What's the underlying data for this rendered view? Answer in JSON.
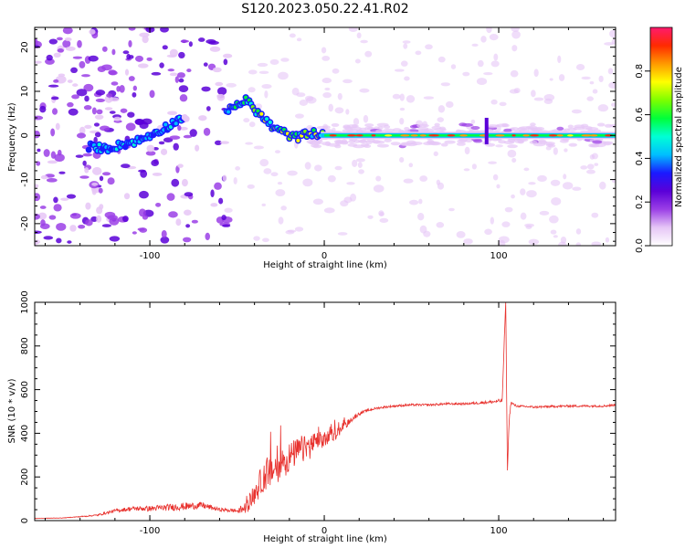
{
  "chart_data": [
    {
      "type": "heatmap",
      "title": "S120.2023.050.22.41.R02",
      "xlabel": "Height of straight line (km)",
      "ylabel": "Frequency (Hz)",
      "xlim": [
        -166,
        167
      ],
      "ylim": [
        -25,
        24.5
      ],
      "x_ticks": [
        -100,
        0,
        100
      ],
      "y_ticks": [
        -20,
        -10,
        0,
        10,
        20
      ],
      "colorbar": {
        "label": "Normalized spectral amplitude",
        "range": [
          0,
          1
        ],
        "ticks": [
          "0.0",
          "0.2",
          "0.4",
          "0.6",
          "0.8"
        ],
        "colormap": [
          "#ffffff",
          "#e6c6f6",
          "#9b3fe6",
          "#5a00d8",
          "#1a1aff",
          "#00bfff",
          "#00ffd5",
          "#00ff3a",
          "#7dff00",
          "#ffff00",
          "#ff9900",
          "#ff2a00",
          "#ff1a6e"
        ]
      },
      "ridge": {
        "x": [
          -135,
          -125,
          -115,
          -105,
          -95,
          -88,
          -82,
          -78,
          -55,
          -50,
          -45,
          -40,
          -35,
          -30,
          -25,
          -20,
          -15,
          -10,
          -5,
          0,
          10,
          20,
          40,
          60,
          80,
          90,
          93,
          95,
          100,
          120,
          140,
          160,
          167
        ],
        "y": [
          -2.5,
          -3,
          -2,
          -1,
          1,
          2.5,
          4,
          4.5,
          5.5,
          7,
          8,
          6,
          4,
          2,
          1,
          0,
          -0.5,
          0.5,
          0.5,
          0,
          0,
          0,
          0,
          0,
          0,
          0,
          -1,
          0,
          0,
          0,
          0,
          0,
          0
        ]
      }
    },
    {
      "type": "line",
      "xlabel": "Height of straight line (km)",
      "ylabel": "SNR (10 * v/v)",
      "xlim": [
        -166,
        167
      ],
      "ylim": [
        0,
        1000
      ],
      "x_ticks": [
        -100,
        0,
        100
      ],
      "y_ticks": [
        0,
        200,
        400,
        600,
        800,
        1000
      ],
      "color": "#e8322e",
      "series": [
        {
          "x": [
            -166,
            -150,
            -140,
            -130,
            -120,
            -110,
            -100,
            -90,
            -80,
            -70,
            -60,
            -50,
            -45,
            -40,
            -35,
            -30,
            -25,
            -20,
            -15,
            -10,
            -5,
            0,
            5,
            10,
            15,
            20,
            25,
            30,
            40,
            50,
            60,
            70,
            80,
            90,
            98,
            102,
            103,
            104,
            105,
            106,
            107,
            110,
            120,
            140,
            160,
            167
          ],
          "y": [
            10,
            12,
            18,
            25,
            45,
            55,
            55,
            60,
            65,
            70,
            50,
            45,
            60,
            120,
            200,
            230,
            260,
            290,
            320,
            340,
            360,
            370,
            390,
            420,
            460,
            490,
            505,
            515,
            525,
            530,
            530,
            535,
            535,
            540,
            545,
            550,
            780,
            1000,
            230,
            460,
            540,
            525,
            520,
            525,
            525,
            530
          ],
          "noise": [
            2,
            2,
            4,
            8,
            15,
            20,
            25,
            30,
            35,
            30,
            15,
            20,
            60,
            100,
            140,
            150,
            150,
            140,
            120,
            100,
            90,
            80,
            60,
            40,
            25,
            15,
            12,
            10,
            10,
            10,
            10,
            10,
            10,
            12,
            15,
            20,
            20,
            0,
            0,
            20,
            15,
            10,
            10,
            10,
            10,
            10
          ]
        }
      ]
    }
  ]
}
